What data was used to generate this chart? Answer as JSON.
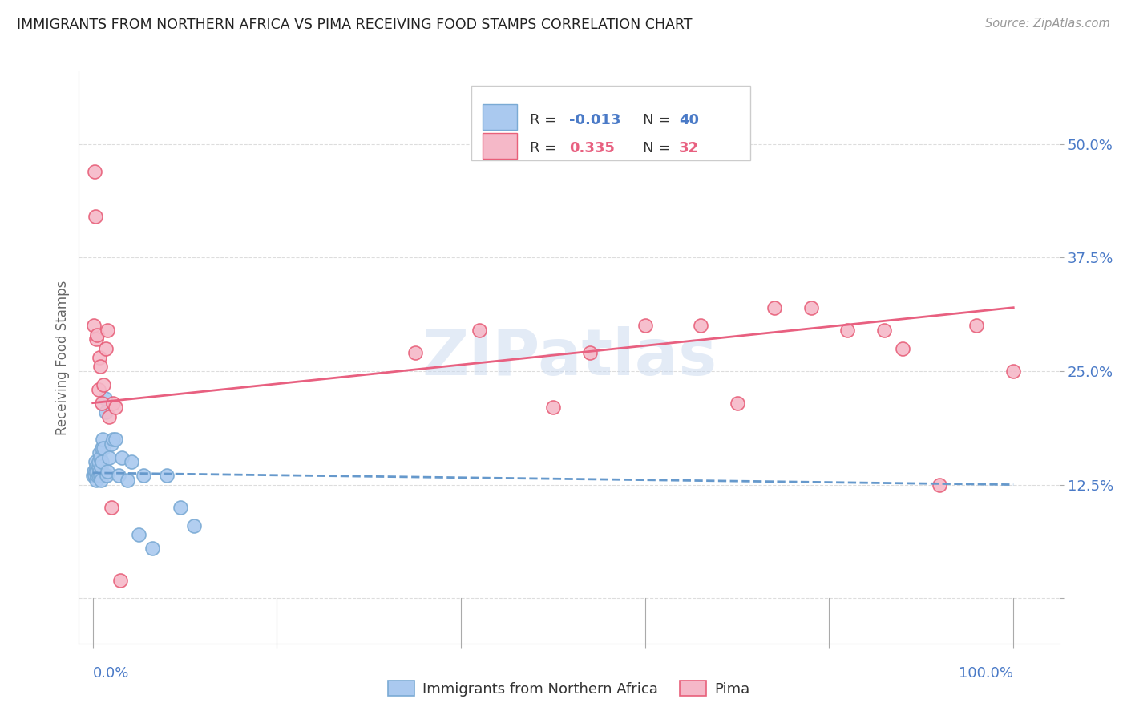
{
  "title": "IMMIGRANTS FROM NORTHERN AFRICA VS PIMA RECEIVING FOOD STAMPS CORRELATION CHART",
  "source": "Source: ZipAtlas.com",
  "ylabel": "Receiving Food Stamps",
  "yticks": [
    0.0,
    0.125,
    0.25,
    0.375,
    0.5
  ],
  "ytick_labels": [
    "",
    "12.5%",
    "25.0%",
    "37.5%",
    "50.0%"
  ],
  "legend_r1": "R = ",
  "legend_v1": "-0.013",
  "legend_n1_label": "N = ",
  "legend_n1": "40",
  "legend_r2": "R =  ",
  "legend_v2": "0.335",
  "legend_n2_label": "N = ",
  "legend_n2": "32",
  "blue_color": "#aac9ef",
  "blue_edge_color": "#7aaad4",
  "pink_color": "#f5b8c8",
  "pink_edge_color": "#e8607a",
  "blue_line_color": "#6699cc",
  "pink_line_color": "#e86080",
  "text_color": "#4a7ac7",
  "pink_text_color": "#e86080",
  "title_color": "#222222",
  "source_color": "#999999",
  "grid_color": "#dddddd",
  "watermark": "ZIPatlas",
  "watermark_color": "#c8d8ee",
  "blue_scatter_x": [
    0.0,
    0.001,
    0.002,
    0.003,
    0.003,
    0.004,
    0.004,
    0.005,
    0.005,
    0.006,
    0.006,
    0.006,
    0.007,
    0.007,
    0.008,
    0.008,
    0.009,
    0.009,
    0.01,
    0.01,
    0.011,
    0.012,
    0.013,
    0.014,
    0.015,
    0.016,
    0.018,
    0.02,
    0.022,
    0.025,
    0.028,
    0.032,
    0.038,
    0.042,
    0.05,
    0.055,
    0.065,
    0.08,
    0.095,
    0.11
  ],
  "blue_scatter_y": [
    0.135,
    0.14,
    0.135,
    0.15,
    0.14,
    0.13,
    0.145,
    0.135,
    0.14,
    0.145,
    0.15,
    0.135,
    0.16,
    0.14,
    0.155,
    0.135,
    0.145,
    0.13,
    0.15,
    0.165,
    0.175,
    0.165,
    0.22,
    0.205,
    0.135,
    0.14,
    0.155,
    0.17,
    0.175,
    0.175,
    0.135,
    0.155,
    0.13,
    0.15,
    0.07,
    0.135,
    0.055,
    0.135,
    0.1,
    0.08
  ],
  "pink_scatter_x": [
    0.001,
    0.002,
    0.003,
    0.004,
    0.005,
    0.006,
    0.007,
    0.008,
    0.01,
    0.012,
    0.014,
    0.016,
    0.018,
    0.02,
    0.022,
    0.025,
    0.03,
    0.35,
    0.42,
    0.5,
    0.54,
    0.6,
    0.66,
    0.7,
    0.74,
    0.78,
    0.82,
    0.86,
    0.88,
    0.92,
    0.96,
    1.0
  ],
  "pink_scatter_y": [
    0.3,
    0.47,
    0.42,
    0.285,
    0.29,
    0.23,
    0.265,
    0.255,
    0.215,
    0.235,
    0.275,
    0.295,
    0.2,
    0.1,
    0.215,
    0.21,
    0.02,
    0.27,
    0.295,
    0.21,
    0.27,
    0.3,
    0.3,
    0.215,
    0.32,
    0.32,
    0.295,
    0.295,
    0.275,
    0.125,
    0.3,
    0.25
  ],
  "blue_line_x": [
    0.0,
    1.0
  ],
  "blue_line_y": [
    0.138,
    0.125
  ],
  "pink_line_x": [
    0.0,
    1.0
  ],
  "pink_line_y": [
    0.215,
    0.32
  ],
  "xlim": [
    -0.015,
    1.05
  ],
  "ylim": [
    -0.05,
    0.58
  ]
}
